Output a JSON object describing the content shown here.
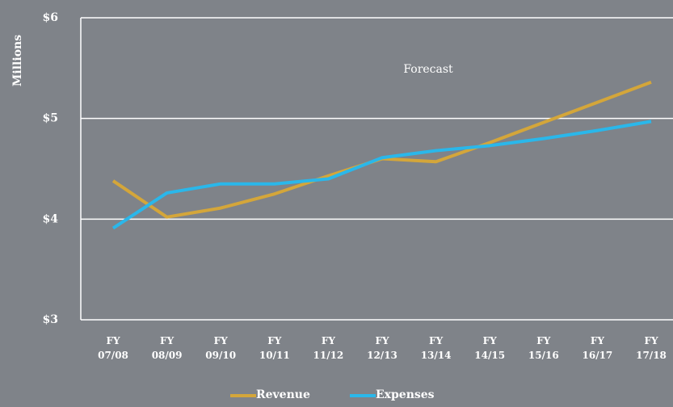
{
  "chart_data": {
    "type": "line",
    "y_label": "Millions",
    "annotation": "Forecast",
    "categories": [
      "FY 07/08",
      "FY 08/09",
      "FY 09/10",
      "FY 10/11",
      "FY 11/12",
      "FY 12/13",
      "FY 13/14",
      "FY 14/15",
      "FY 15/16",
      "FY 16/17",
      "FY 17/18"
    ],
    "series": [
      {
        "name": "Revenue",
        "color": "#d4a63a",
        "values": [
          4.38,
          4.02,
          4.11,
          4.25,
          4.43,
          4.6,
          4.57,
          4.76,
          4.96,
          5.16,
          5.36
        ]
      },
      {
        "name": "Expenses",
        "color": "#2ab7ea",
        "values": [
          3.91,
          4.26,
          4.35,
          4.35,
          4.4,
          4.61,
          4.68,
          4.73,
          4.8,
          4.88,
          4.97
        ]
      }
    ],
    "ylim": [
      3,
      6
    ],
    "yticks": [
      {
        "value": 3,
        "label": "$3"
      },
      {
        "value": 4,
        "label": "$4"
      },
      {
        "value": 5,
        "label": "$5"
      },
      {
        "value": 6,
        "label": "$6"
      }
    ],
    "grid": true,
    "legend": "bottom"
  }
}
